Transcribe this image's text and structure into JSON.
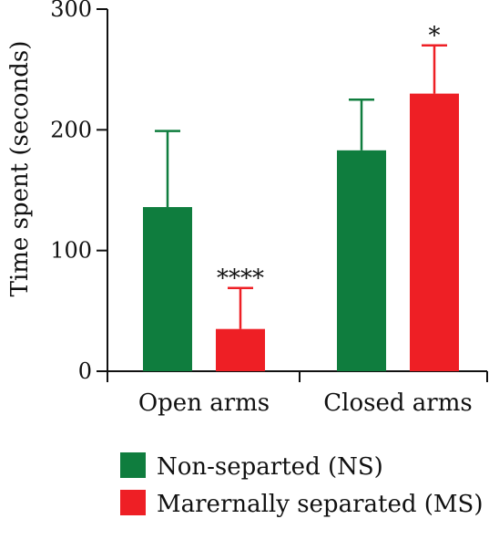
{
  "chart_data": {
    "type": "bar",
    "categories": [
      "Open arms",
      "Closed arms"
    ],
    "series": [
      {
        "name": "Non-separted (NS)",
        "values": [
          136,
          183
        ],
        "error": [
          63,
          42
        ],
        "color": "#0f7d3e"
      },
      {
        "name": "Marernally separated (MS)",
        "values": [
          35,
          230
        ],
        "error": [
          34,
          40
        ],
        "color": "#ee1f25"
      }
    ],
    "significance": [
      {
        "category_index": 0,
        "series_index": 1,
        "label": "****"
      },
      {
        "category_index": 1,
        "series_index": 1,
        "label": "*"
      }
    ],
    "ylabel": "Time spent (seconds)",
    "ylim": [
      0,
      300
    ],
    "yticks": [
      0,
      100,
      200,
      300
    ],
    "grid": false,
    "legend_position": "bottom"
  }
}
